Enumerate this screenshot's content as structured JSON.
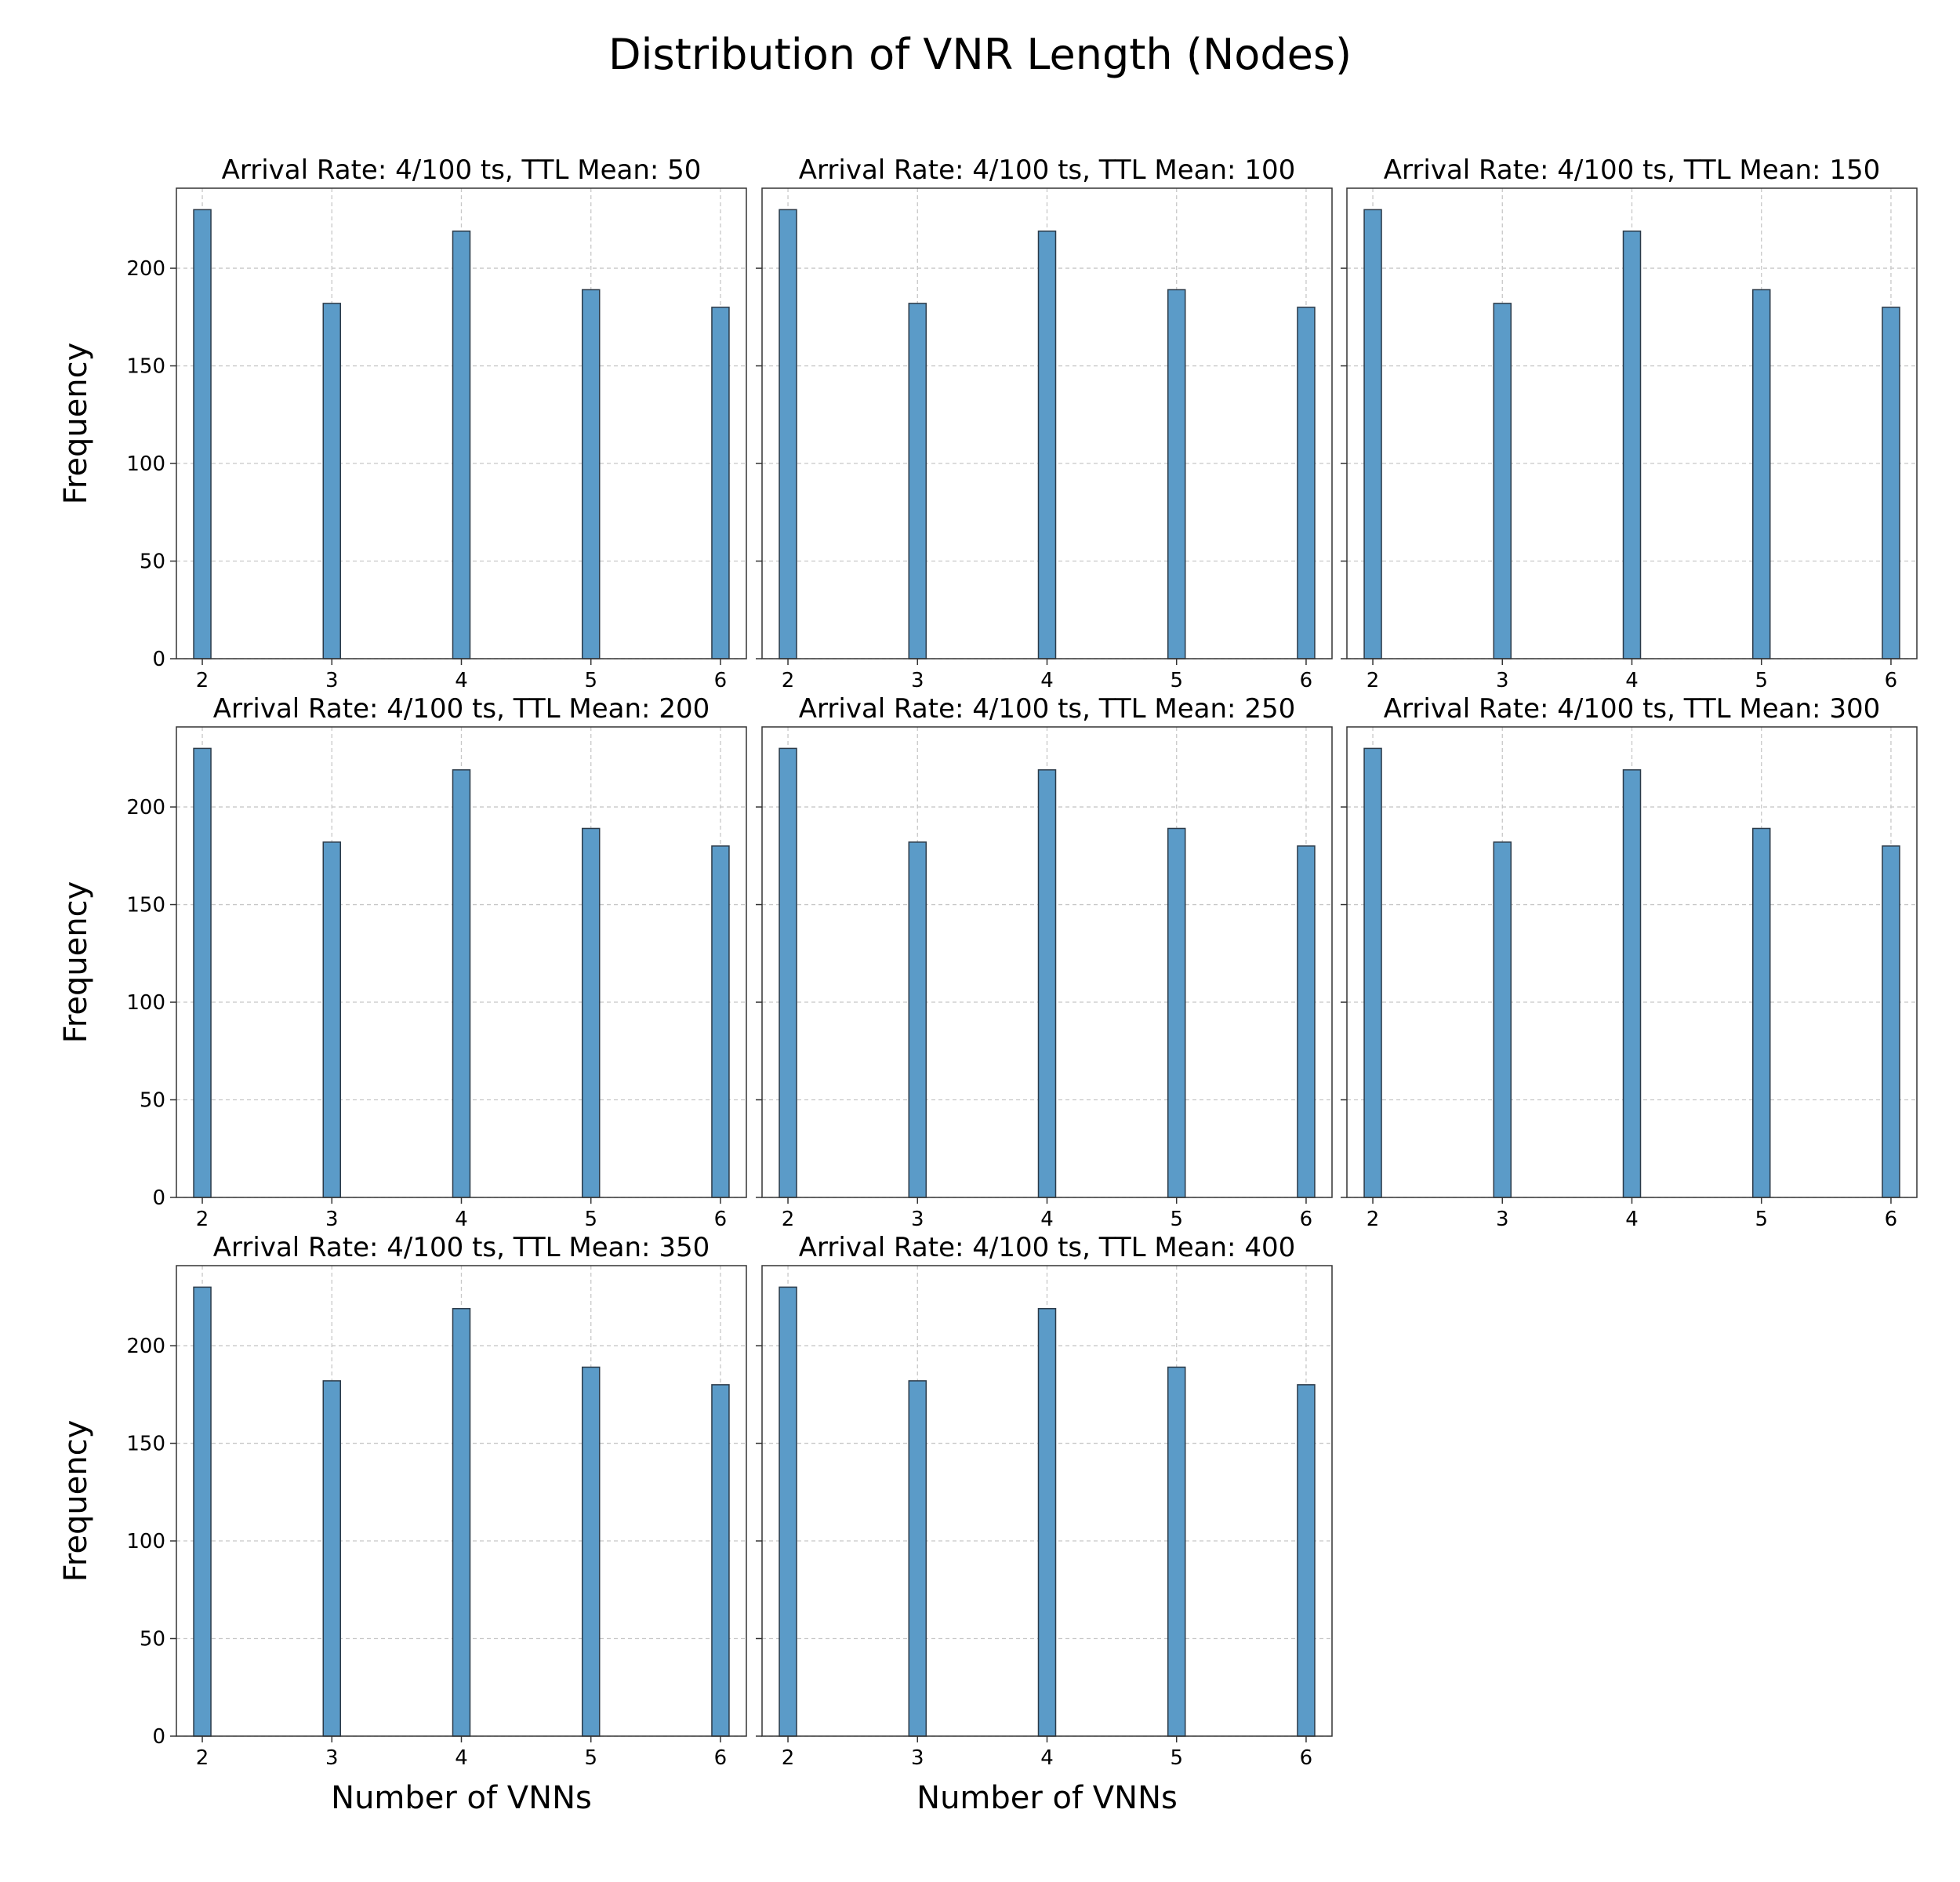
{
  "figure": {
    "title": "Distribution of VNR Length (Nodes)"
  },
  "colors": {
    "bar_fill": "#5b9bc8",
    "bar_edge": "#2b3a48",
    "grid": "#c8c8c8",
    "axes": "#333333"
  },
  "chart_data": [
    {
      "type": "bar",
      "title": "Arrival Rate: 4/100 ts, TTL Mean: 50",
      "xlabel": "",
      "ylabel": "Frequency",
      "x": [
        2,
        3,
        4,
        5,
        6
      ],
      "values": [
        230,
        182,
        219,
        189,
        180
      ],
      "xlim": [
        1.8,
        6.2
      ],
      "ylim": [
        0,
        241
      ],
      "xticks": [
        2,
        3,
        4,
        5,
        6
      ],
      "yticks": [
        0,
        50,
        100,
        150,
        200
      ],
      "grid": true
    },
    {
      "type": "bar",
      "title": "Arrival Rate: 4/100 ts, TTL Mean: 100",
      "xlabel": "",
      "ylabel": "",
      "x": [
        2,
        3,
        4,
        5,
        6
      ],
      "values": [
        230,
        182,
        219,
        189,
        180
      ],
      "xlim": [
        1.8,
        6.2
      ],
      "ylim": [
        0,
        241
      ],
      "xticks": [
        2,
        3,
        4,
        5,
        6
      ],
      "yticks": [
        0,
        50,
        100,
        150,
        200
      ],
      "grid": true
    },
    {
      "type": "bar",
      "title": "Arrival Rate: 4/100 ts, TTL Mean: 150",
      "xlabel": "",
      "ylabel": "",
      "x": [
        2,
        3,
        4,
        5,
        6
      ],
      "values": [
        230,
        182,
        219,
        189,
        180
      ],
      "xlim": [
        1.8,
        6.2
      ],
      "ylim": [
        0,
        241
      ],
      "xticks": [
        2,
        3,
        4,
        5,
        6
      ],
      "yticks": [
        0,
        50,
        100,
        150,
        200
      ],
      "grid": true
    },
    {
      "type": "bar",
      "title": "Arrival Rate: 4/100 ts, TTL Mean: 200",
      "xlabel": "",
      "ylabel": "Frequency",
      "x": [
        2,
        3,
        4,
        5,
        6
      ],
      "values": [
        230,
        182,
        219,
        189,
        180
      ],
      "xlim": [
        1.8,
        6.2
      ],
      "ylim": [
        0,
        241
      ],
      "xticks": [
        2,
        3,
        4,
        5,
        6
      ],
      "yticks": [
        0,
        50,
        100,
        150,
        200
      ],
      "grid": true
    },
    {
      "type": "bar",
      "title": "Arrival Rate: 4/100 ts, TTL Mean: 250",
      "xlabel": "",
      "ylabel": "",
      "x": [
        2,
        3,
        4,
        5,
        6
      ],
      "values": [
        230,
        182,
        219,
        189,
        180
      ],
      "xlim": [
        1.8,
        6.2
      ],
      "ylim": [
        0,
        241
      ],
      "xticks": [
        2,
        3,
        4,
        5,
        6
      ],
      "yticks": [
        0,
        50,
        100,
        150,
        200
      ],
      "grid": true
    },
    {
      "type": "bar",
      "title": "Arrival Rate: 4/100 ts, TTL Mean: 300",
      "xlabel": "",
      "ylabel": "",
      "x": [
        2,
        3,
        4,
        5,
        6
      ],
      "values": [
        230,
        182,
        219,
        189,
        180
      ],
      "xlim": [
        1.8,
        6.2
      ],
      "ylim": [
        0,
        241
      ],
      "xticks": [
        2,
        3,
        4,
        5,
        6
      ],
      "yticks": [
        0,
        50,
        100,
        150,
        200
      ],
      "grid": true
    },
    {
      "type": "bar",
      "title": "Arrival Rate: 4/100 ts, TTL Mean: 350",
      "xlabel": "Number of VNNs",
      "ylabel": "Frequency",
      "x": [
        2,
        3,
        4,
        5,
        6
      ],
      "values": [
        230,
        182,
        219,
        189,
        180
      ],
      "xlim": [
        1.8,
        6.2
      ],
      "ylim": [
        0,
        241
      ],
      "xticks": [
        2,
        3,
        4,
        5,
        6
      ],
      "yticks": [
        0,
        50,
        100,
        150,
        200
      ],
      "grid": true
    },
    {
      "type": "bar",
      "title": "Arrival Rate: 4/100 ts, TTL Mean: 400",
      "xlabel": "Number of VNNs",
      "ylabel": "",
      "x": [
        2,
        3,
        4,
        5,
        6
      ],
      "values": [
        230,
        182,
        219,
        189,
        180
      ],
      "xlim": [
        1.8,
        6.2
      ],
      "ylim": [
        0,
        241
      ],
      "xticks": [
        2,
        3,
        4,
        5,
        6
      ],
      "yticks": [
        0,
        50,
        100,
        150,
        200
      ],
      "grid": true
    }
  ]
}
